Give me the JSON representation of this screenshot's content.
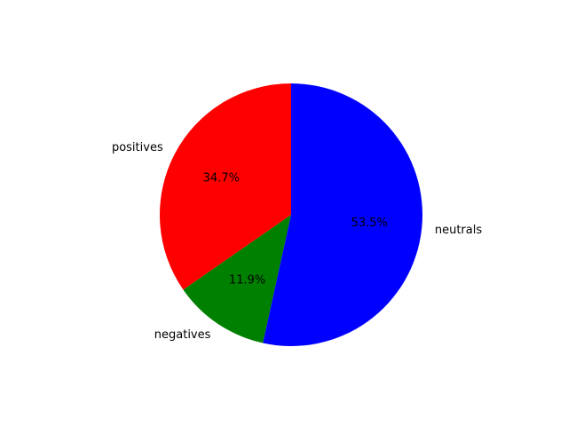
{
  "chart_data": {
    "type": "pie",
    "labels": [
      "positives",
      "negatives",
      "neutrals"
    ],
    "values": [
      34.7,
      11.9,
      53.5
    ],
    "percent_labels": [
      "34.7%",
      "11.9%",
      "53.5%"
    ],
    "colors": [
      "#ff0000",
      "#008000",
      "#0000ff"
    ],
    "start_angle_deg": 90,
    "direction": "counterclockwise",
    "title": "",
    "legend": "none"
  }
}
